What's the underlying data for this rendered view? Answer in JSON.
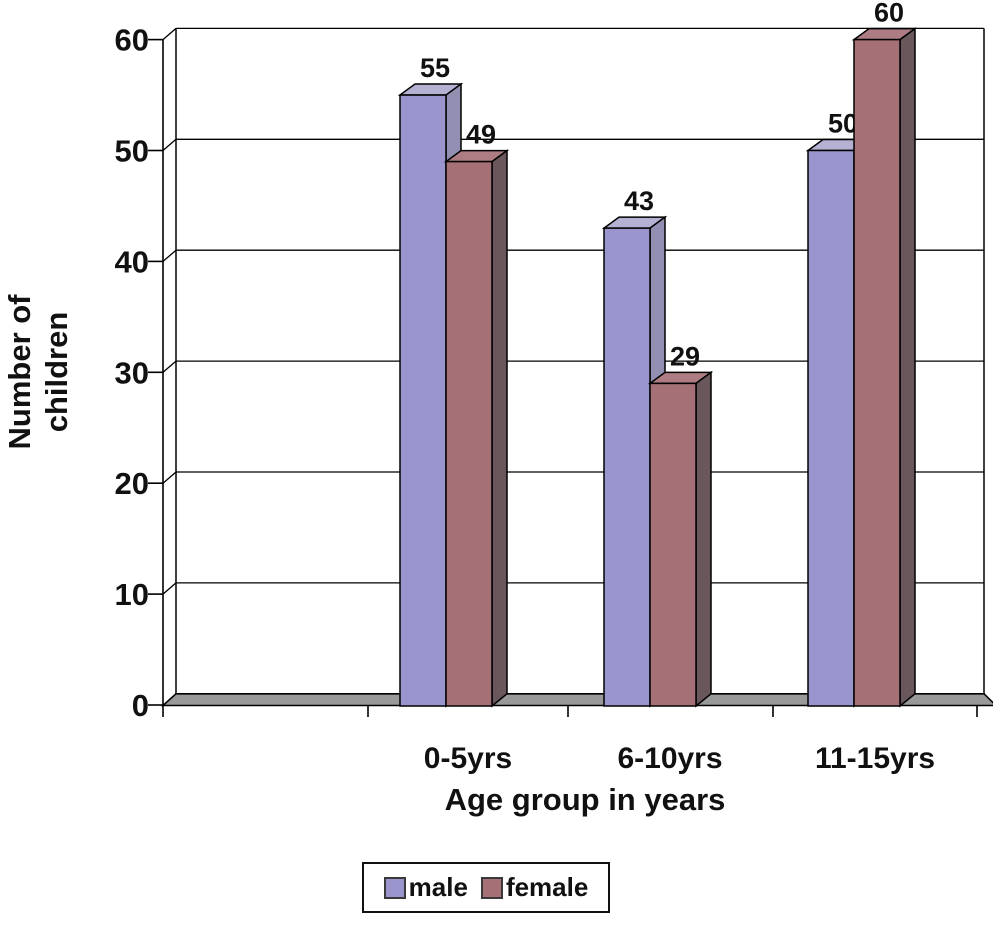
{
  "chart_data": {
    "type": "bar",
    "effect": "3d",
    "categories": [
      "0-5yrs",
      "6-10yrs",
      "11-15yrs"
    ],
    "series": [
      {
        "name": "male",
        "values": [
          55,
          43,
          50
        ],
        "color": "#9b95ce",
        "side_color": "#928fb2",
        "top_color": "#b4b1d3"
      },
      {
        "name": "female",
        "values": [
          49,
          29,
          60
        ],
        "color": "#a57177",
        "side_color": "#6a575b",
        "top_color": "#ad7d83"
      }
    ],
    "xlabel": "Age group in years",
    "ylabel": "Number of children",
    "ylabel_lines": [
      "Number of",
      "children"
    ],
    "yticks": [
      0,
      10,
      20,
      30,
      40,
      50,
      60
    ],
    "ylim": [
      0,
      60
    ],
    "grid": true,
    "bar_value_labels": true,
    "legend_position": "bottom",
    "legend_labels": [
      "male",
      "female"
    ],
    "background": "#ffffff",
    "floor_color": "#999999",
    "line_color": "#000000",
    "text_color": "#111111"
  }
}
